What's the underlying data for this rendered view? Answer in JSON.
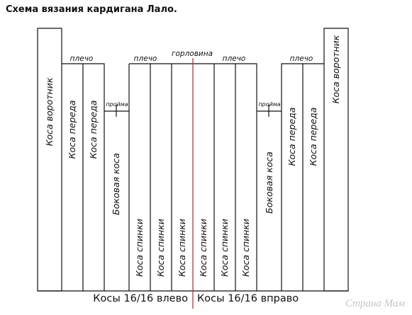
{
  "title": "Схема вязания кардигана Лало.",
  "labels": {
    "collar": "Коса воротник",
    "front": "Коса переда",
    "side": "Боковая коса",
    "back": "Коса спинки",
    "shoulder": "плечо",
    "armhole": "пройма",
    "neckline": "горловина"
  },
  "footer": {
    "left": "Косы 16/16 влево",
    "right": "Косы 16/16 вправо"
  },
  "watermark": "Страна Мам",
  "colors": {
    "line": "#111111",
    "center_line": "#b03a3a"
  }
}
